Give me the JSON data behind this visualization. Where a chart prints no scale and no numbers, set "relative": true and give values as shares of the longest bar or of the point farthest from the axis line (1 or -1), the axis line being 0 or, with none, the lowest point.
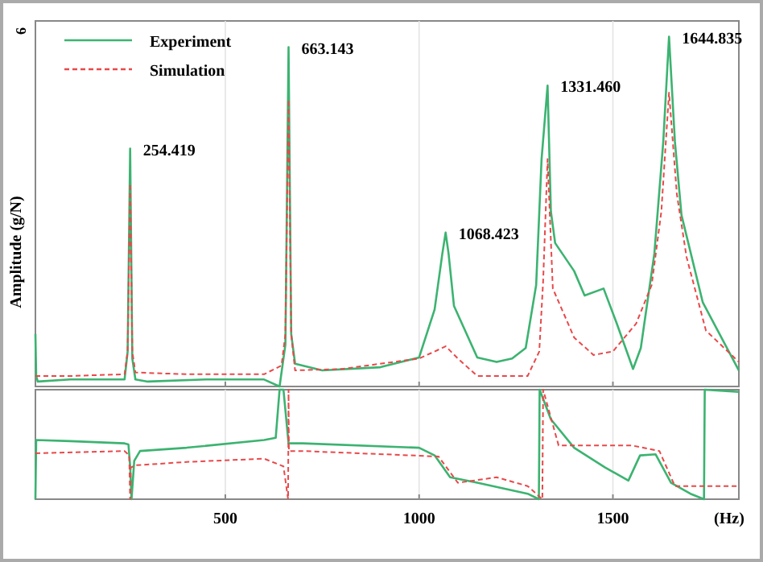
{
  "chart_data": [
    {
      "type": "line",
      "relative": true,
      "ylabel": "Amplitude (g/N)",
      "xlim": [
        10,
        1825
      ],
      "xticks": [
        500,
        1000,
        1500
      ],
      "tick_labels": false,
      "grid": "x",
      "legend": "top left",
      "marker": "none",
      "annotations": [
        "6",
        {
          "text": "254.419",
          "x": 254.419,
          "y": 0.68
        },
        {
          "text": "663.143",
          "x": 663.143,
          "y": 0.97
        },
        {
          "text": "1068.423",
          "x": 1068.423,
          "y": 0.44
        },
        {
          "text": "1331.460",
          "x": 1331.46,
          "y": 0.86
        },
        {
          "text": "1644.835",
          "x": 1644.835,
          "y": 1.0
        }
      ],
      "series": [
        {
          "name": "Experiment",
          "color": "#3cb371",
          "line_style": "solid",
          "x": [
            10,
            12,
            16,
            100,
            240,
            248,
            254.419,
            260,
            268,
            300,
            450,
            600,
            640,
            655,
            663.143,
            670,
            680,
            750,
            900,
            1000,
            1040,
            1060,
            1068.423,
            1076,
            1090,
            1150,
            1200,
            1240,
            1275,
            1302,
            1316,
            1331.46,
            1340,
            1351,
            1400,
            1427,
            1476,
            1510,
            1552,
            1572,
            1607,
            1630,
            1644.835,
            1660,
            1677,
            1732,
            1825
          ],
          "values": [
            0.15,
            0.03,
            0.014,
            0.02,
            0.02,
            0.1,
            0.68,
            0.08,
            0.02,
            0.014,
            0.02,
            0.02,
            0,
            0.12,
            0.97,
            0.15,
            0.065,
            0.046,
            0.055,
            0.083,
            0.22,
            0.38,
            0.44,
            0.38,
            0.23,
            0.083,
            0.07,
            0.08,
            0.11,
            0.29,
            0.65,
            0.86,
            0.5,
            0.41,
            0.33,
            0.26,
            0.28,
            0.18,
            0.05,
            0.11,
            0.38,
            0.7,
            1.0,
            0.7,
            0.49,
            0.24,
            0.046
          ]
        },
        {
          "name": "Simulation",
          "color": "#e8494a",
          "line_style": "dashed",
          "x": [
            10,
            100,
            240,
            248,
            254.419,
            260,
            268,
            400,
            600,
            645,
            655,
            663.143,
            670,
            680,
            800,
            1000,
            1040,
            1068.423,
            1100,
            1150,
            1280,
            1310,
            1320,
            1331.46,
            1345,
            1400,
            1450,
            1500,
            1560,
            1600,
            1625,
            1644.835,
            1665,
            1690,
            1740,
            1825
          ],
          "values": [
            0.03,
            0.03,
            0.035,
            0.1,
            0.58,
            0.1,
            0.04,
            0.035,
            0.035,
            0.06,
            0.15,
            0.82,
            0.15,
            0.046,
            0.05,
            0.08,
            0.1,
            0.115,
            0.08,
            0.03,
            0.03,
            0.1,
            0.3,
            0.65,
            0.28,
            0.14,
            0.09,
            0.1,
            0.18,
            0.29,
            0.5,
            0.84,
            0.55,
            0.37,
            0.16,
            0.07
          ]
        }
      ]
    },
    {
      "type": "line",
      "relative": true,
      "xlabel": "(Hz)",
      "xlim": [
        10,
        1825
      ],
      "xticks": [
        500,
        1000,
        1500
      ],
      "tick_labels": "x",
      "grid": "x",
      "marker": "none",
      "series": [
        {
          "color": "#3cb371",
          "line_style": "solid",
          "x": [
            10,
            12,
            100,
            240,
            250,
            254.419,
            258,
            265,
            280,
            400,
            600,
            630,
            640,
            650,
            663.143,
            670,
            700,
            1000,
            1040,
            1080,
            1150,
            1280,
            1309,
            1311,
            1340,
            1400,
            1480,
            1540,
            1570,
            1610,
            1650,
            1700,
            1735,
            1737,
            1825
          ],
          "values": [
            0,
            0.54,
            0.53,
            0.51,
            0.5,
            0.3,
            0,
            0.35,
            0.44,
            0.47,
            0.54,
            0.56,
            1.0,
            1.0,
            0.51,
            0.51,
            0.51,
            0.47,
            0.4,
            0.2,
            0.15,
            0.05,
            0,
            1.0,
            0.73,
            0.47,
            0.29,
            0.17,
            0.4,
            0.41,
            0.15,
            0.05,
            0,
            1.0,
            0.98
          ]
        },
        {
          "color": "#e8494a",
          "line_style": "dashed",
          "x": [
            10,
            240,
            252,
            254.419,
            256,
            270,
            400,
            600,
            650,
            662,
            663.143,
            664,
            700,
            1050,
            1100,
            1200,
            1280,
            1318,
            1320,
            1360,
            1450,
            1550,
            1620,
            1660,
            1825
          ],
          "values": [
            0.42,
            0.44,
            0.4,
            0,
            0.29,
            0.31,
            0.34,
            0.37,
            0.3,
            0,
            1.0,
            0.44,
            0.44,
            0.39,
            0.15,
            0.2,
            0.12,
            0,
            1.0,
            0.49,
            0.49,
            0.49,
            0.44,
            0.12,
            0.12
          ]
        }
      ]
    }
  ]
}
